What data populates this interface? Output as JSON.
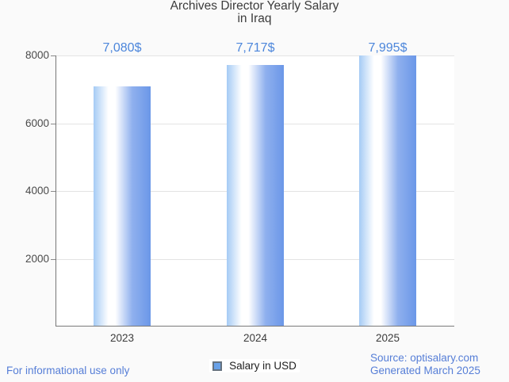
{
  "title": {
    "line1": "Archives Director Yearly Salary",
    "line2": "in Iraq"
  },
  "chart_data": {
    "type": "bar",
    "title": "Archives Director Yearly Salary in Iraq",
    "categories": [
      "2023",
      "2024",
      "2025"
    ],
    "series": [
      {
        "name": "Salary in USD",
        "values": [
          7080,
          7717,
          7995
        ]
      }
    ],
    "value_labels": [
      "7,080$",
      "7,717$",
      "7,995$"
    ],
    "xlabel": "",
    "ylabel": "",
    "ylim": [
      0,
      8000
    ],
    "yticks": [
      2000,
      4000,
      6000,
      8000
    ],
    "ytick_labels": [
      "2000",
      "4000",
      "6000",
      "8000"
    ],
    "grid": true,
    "legend_position": "bottom",
    "colors": {
      "annotation_text": "#4c86db",
      "bar_gradient_left": "#a5cbf5",
      "bar_gradient_center": "#ffffff",
      "bar_gradient_right": "#6b97e8",
      "legend_marker_fill": "#68a1e8",
      "legend_marker_border": "#65727f",
      "gridline": "#e3e3e3",
      "link_text": "#567ed7",
      "plot_background": "#ffffff",
      "page_background": "#fafafa"
    }
  },
  "legend": {
    "label": "Salary in USD"
  },
  "footer": {
    "left_note": "For informational use only",
    "source": "Source: optisalary.com",
    "generated": "Generated March 2025"
  }
}
